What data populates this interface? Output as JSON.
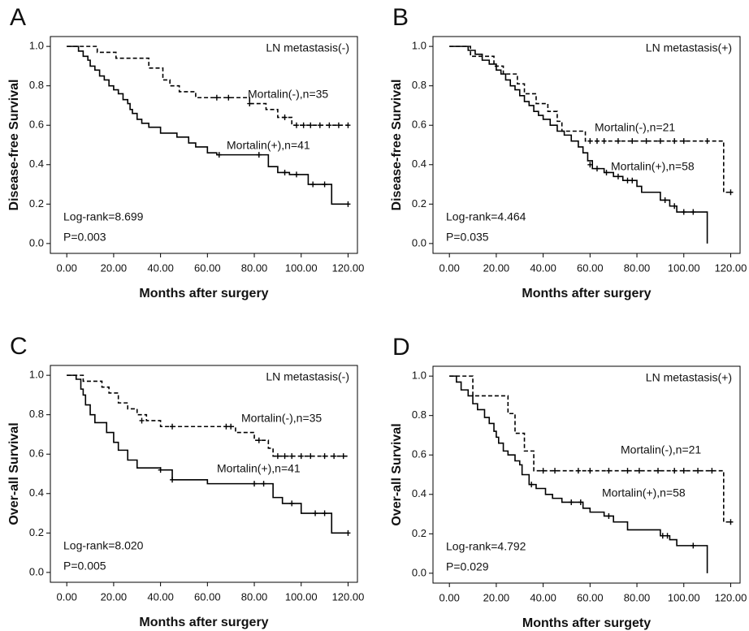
{
  "chart_data": [
    {
      "type": "line",
      "title": "A",
      "annotation": "LN metastasis(-)",
      "log_rank": "Log-rank=8.699",
      "p_value": "P=0.003",
      "x_label": "Months after surgery",
      "y_label": "Disease-free Survival",
      "xlim": [
        -7,
        124
      ],
      "ylim": [
        -0.05,
        1.05
      ],
      "xticks": [
        {
          "value": 0,
          "label": "0.00"
        },
        {
          "value": 20,
          "label": "20.00"
        },
        {
          "value": 40,
          "label": "40.00"
        },
        {
          "value": 60,
          "label": "60.00"
        },
        {
          "value": 80,
          "label": "80.00"
        },
        {
          "value": 100,
          "label": "100.00"
        },
        {
          "value": 120,
          "label": "120.00"
        }
      ],
      "yticks": [
        {
          "value": 0,
          "label": "0.0"
        },
        0.2,
        0.4,
        0.6,
        0.8,
        {
          "value": 1,
          "label": "1.0"
        }
      ],
      "series": [
        {
          "name": "Mortalin(-),n=35",
          "color": "#000000",
          "line_style": "dashed",
          "x": [
            0,
            13,
            21,
            35,
            41,
            44,
            48,
            55,
            78,
            85,
            90,
            96,
            120
          ],
          "values": [
            1,
            0.97,
            0.94,
            0.89,
            0.83,
            0.8,
            0.77,
            0.74,
            0.71,
            0.68,
            0.64,
            0.6,
            0.6
          ],
          "censored": {
            "x": [
              64,
              69,
              78,
              93,
              98,
              101,
              104,
              108,
              112,
              116,
              120
            ],
            "values": [
              0.74,
              0.74,
              0.71,
              0.64,
              0.6,
              0.6,
              0.6,
              0.6,
              0.6,
              0.6,
              0.6
            ]
          }
        },
        {
          "name": "Mortalin(+),n=41",
          "color": "#000000",
          "line_style": "solid",
          "x": [
            0,
            5,
            7,
            9,
            10,
            12,
            14,
            16,
            18,
            20,
            22,
            24,
            26,
            27,
            28,
            30,
            32,
            35,
            40,
            47,
            52,
            55,
            60,
            64,
            86,
            90,
            95,
            103,
            113,
            120
          ],
          "values": [
            1,
            0.976,
            0.95,
            0.93,
            0.9,
            0.88,
            0.85,
            0.83,
            0.8,
            0.78,
            0.76,
            0.73,
            0.71,
            0.68,
            0.66,
            0.63,
            0.61,
            0.59,
            0.56,
            0.54,
            0.51,
            0.49,
            0.46,
            0.45,
            0.39,
            0.36,
            0.35,
            0.3,
            0.2,
            0.2
          ],
          "censored": {
            "x": [
              65,
              82,
              93,
              98,
              105,
              110,
              120
            ],
            "values": [
              0.45,
              0.45,
              0.36,
              0.35,
              0.3,
              0.3,
              0.2
            ]
          }
        }
      ]
    },
    {
      "type": "line",
      "title": "B",
      "annotation": "LN metastasis(+)",
      "log_rank": "Log-rank=4.464",
      "p_value": "P=0.035",
      "x_label": "Months after surgery",
      "y_label": "Disease-free Survival",
      "xlim": [
        -7,
        124
      ],
      "ylim": [
        -0.05,
        1.05
      ],
      "xticks": [
        {
          "value": 0,
          "label": "0.00"
        },
        {
          "value": 20,
          "label": "20.00"
        },
        {
          "value": 40,
          "label": "40.00"
        },
        {
          "value": 60,
          "label": "60.00"
        },
        {
          "value": 80,
          "label": "80.00"
        },
        {
          "value": 100,
          "label": "100.00"
        },
        {
          "value": 120,
          "label": "120.00"
        }
      ],
      "yticks": [
        {
          "value": 0,
          "label": "0.0"
        },
        0.2,
        0.4,
        0.6,
        0.8,
        {
          "value": 1,
          "label": "1.0"
        }
      ],
      "series": [
        {
          "name": "Mortalin(-),n=21",
          "color": "#000000",
          "line_style": "dashed",
          "x": [
            0,
            9,
            19,
            23,
            29,
            32,
            37,
            42,
            46,
            48,
            58,
            117,
            120
          ],
          "values": [
            1,
            0.95,
            0.9,
            0.86,
            0.81,
            0.76,
            0.71,
            0.67,
            0.62,
            0.57,
            0.52,
            0.26,
            0.26
          ],
          "censored": {
            "x": [
              60,
              63,
              66,
              72,
              78,
              84,
              90,
              96,
              100,
              110,
              120
            ],
            "values": [
              0.52,
              0.52,
              0.52,
              0.52,
              0.52,
              0.52,
              0.52,
              0.52,
              0.52,
              0.52,
              0.26
            ]
          }
        },
        {
          "name": "Mortalin(+),n=58",
          "color": "#000000",
          "line_style": "solid",
          "x": [
            0,
            8,
            11,
            14,
            17,
            20,
            22,
            24,
            26,
            28,
            30,
            32,
            34,
            36,
            38,
            40,
            43,
            46,
            49,
            52,
            55,
            57,
            59,
            61,
            66,
            70,
            74,
            80,
            82,
            90,
            94,
            97,
            110
          ],
          "values": [
            1,
            0.98,
            0.96,
            0.93,
            0.91,
            0.88,
            0.86,
            0.83,
            0.8,
            0.78,
            0.75,
            0.72,
            0.7,
            0.67,
            0.65,
            0.63,
            0.6,
            0.57,
            0.55,
            0.52,
            0.49,
            0.46,
            0.42,
            0.38,
            0.36,
            0.34,
            0.32,
            0.29,
            0.26,
            0.22,
            0.19,
            0.16,
            0
          ],
          "censored": {
            "x": [
              60,
              63,
              67,
              72,
              76,
              78,
              92,
              96,
              100,
              104
            ],
            "values": [
              0.4,
              0.38,
              0.36,
              0.34,
              0.32,
              0.32,
              0.22,
              0.19,
              0.16,
              0.16
            ]
          }
        }
      ]
    },
    {
      "type": "line",
      "title": "C",
      "annotation": "LN metastasis(-)",
      "log_rank": "Log-rank=8.020",
      "p_value": "P=0.005",
      "x_label": "Months after surgery",
      "y_label": "Over-all Survival",
      "xlim": [
        -7,
        124
      ],
      "ylim": [
        -0.05,
        1.05
      ],
      "xticks": [
        {
          "value": 0,
          "label": "0.00"
        },
        {
          "value": 20,
          "label": "20.00"
        },
        {
          "value": 40,
          "label": "40.00"
        },
        {
          "value": 60,
          "label": "60.00"
        },
        {
          "value": 80,
          "label": "80.00"
        },
        {
          "value": 100,
          "label": "100.00"
        },
        {
          "value": 120,
          "label": "120.00"
        }
      ],
      "yticks": [
        {
          "value": 0,
          "label": "0.0"
        },
        0.2,
        0.4,
        0.6,
        0.8,
        {
          "value": 1,
          "label": "1.0"
        }
      ],
      "series": [
        {
          "name": "Mortalin(-),n=35",
          "color": "#000000",
          "line_style": "dashed",
          "x": [
            0,
            7,
            15,
            18,
            22,
            26,
            30,
            34,
            40,
            72,
            80,
            86,
            88,
            120
          ],
          "values": [
            1,
            0.97,
            0.94,
            0.91,
            0.86,
            0.83,
            0.8,
            0.77,
            0.74,
            0.71,
            0.67,
            0.63,
            0.59,
            0.59
          ],
          "censored": {
            "x": [
              32,
              45,
              68,
              70,
              82,
              90,
              93,
              96,
              100,
              104,
              110,
              114,
              118
            ],
            "values": [
              0.77,
              0.74,
              0.74,
              0.74,
              0.67,
              0.59,
              0.59,
              0.59,
              0.59,
              0.59,
              0.59,
              0.59,
              0.59
            ]
          }
        },
        {
          "name": "Mortalin(+),n=41",
          "color": "#000000",
          "line_style": "solid",
          "x": [
            0,
            4,
            6,
            7,
            8,
            10,
            12,
            17,
            20,
            22,
            26,
            30,
            40,
            45,
            60,
            88,
            92,
            100,
            113,
            120
          ],
          "values": [
            1,
            0.98,
            0.93,
            0.9,
            0.85,
            0.8,
            0.76,
            0.71,
            0.66,
            0.62,
            0.57,
            0.53,
            0.52,
            0.47,
            0.45,
            0.38,
            0.35,
            0.3,
            0.2,
            0.2
          ],
          "censored": {
            "x": [
              40,
              45,
              80,
              84,
              96,
              106,
              110,
              120
            ],
            "values": [
              0.52,
              0.47,
              0.45,
              0.45,
              0.35,
              0.3,
              0.3,
              0.2
            ]
          }
        }
      ]
    },
    {
      "type": "line",
      "title": "D",
      "annotation": "LN metastasis(+)",
      "log_rank": "Log-rank=4.792",
      "p_value": "P=0.029",
      "x_label": "Months after surgety",
      "y_label": "Over-all Survival",
      "xlim": [
        -7,
        124
      ],
      "ylim": [
        -0.05,
        1.05
      ],
      "xticks": [
        {
          "value": 0,
          "label": "0.00"
        },
        {
          "value": 20,
          "label": "20.00"
        },
        {
          "value": 40,
          "label": "40.00"
        },
        {
          "value": 60,
          "label": "60.00"
        },
        {
          "value": 80,
          "label": "80.00"
        },
        {
          "value": 100,
          "label": "100.00"
        },
        {
          "value": 120,
          "label": "120.00"
        }
      ],
      "yticks": [
        {
          "value": 0,
          "label": "0.0"
        },
        0.2,
        0.4,
        0.6,
        0.8,
        {
          "value": 1,
          "label": "1.0"
        }
      ],
      "series": [
        {
          "name": "Mortalin(-),n=21",
          "color": "#000000",
          "line_style": "dashed",
          "x": [
            0,
            10,
            25,
            28,
            32,
            36,
            117,
            120
          ],
          "values": [
            1,
            0.9,
            0.81,
            0.71,
            0.62,
            0.52,
            0.26,
            0.26
          ],
          "censored": {
            "x": [
              40,
              45,
              55,
              60,
              68,
              76,
              81,
              89,
              96,
              100,
              106,
              112,
              120
            ],
            "values": [
              0.52,
              0.52,
              0.52,
              0.52,
              0.52,
              0.52,
              0.52,
              0.52,
              0.52,
              0.52,
              0.52,
              0.52,
              0.26
            ]
          }
        },
        {
          "name": "Mortalin(+),n=58",
          "color": "#000000",
          "line_style": "solid",
          "x": [
            0,
            3,
            5,
            8,
            10,
            12,
            15,
            17,
            19,
            20,
            21,
            23,
            25,
            28,
            30,
            31,
            34,
            37,
            41,
            44,
            48,
            57,
            60,
            66,
            70,
            76,
            90,
            94,
            97,
            110
          ],
          "values": [
            1,
            0.97,
            0.93,
            0.9,
            0.86,
            0.83,
            0.79,
            0.76,
            0.72,
            0.69,
            0.66,
            0.62,
            0.6,
            0.57,
            0.55,
            0.5,
            0.45,
            0.43,
            0.4,
            0.38,
            0.36,
            0.33,
            0.31,
            0.29,
            0.26,
            0.22,
            0.19,
            0.17,
            0.14,
            0
          ],
          "censored": {
            "x": [
              35,
              52,
              56,
              68,
              91,
              93,
              104
            ],
            "values": [
              0.45,
              0.36,
              0.36,
              0.29,
              0.19,
              0.19,
              0.14
            ]
          }
        }
      ]
    }
  ]
}
